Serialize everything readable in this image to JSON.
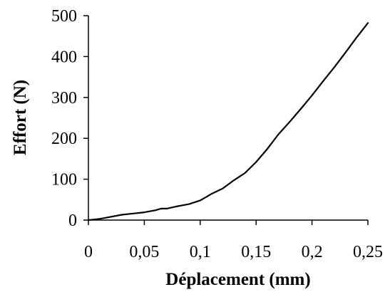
{
  "chart_data": {
    "type": "line",
    "title": "",
    "xlabel": "Déplacement (mm)",
    "ylabel": "Effort (N)",
    "xlim": [
      0,
      0.25
    ],
    "ylim": [
      0,
      500
    ],
    "x_ticks": [
      "0",
      "0,05",
      "0,1",
      "0,15",
      "0,2",
      "0,25"
    ],
    "y_ticks": [
      "0",
      "100",
      "200",
      "300",
      "400",
      "500"
    ],
    "grid": false,
    "legend": "none",
    "line_color": "#000000",
    "series": [
      {
        "x": [
          0,
          0.01,
          0.02,
          0.03,
          0.04,
          0.05,
          0.06,
          0.065,
          0.07,
          0.075,
          0.08,
          0.09,
          0.1,
          0.11,
          0.12,
          0.13,
          0.14,
          0.15,
          0.16,
          0.17,
          0.18,
          0.19,
          0.2,
          0.21,
          0.22,
          0.23,
          0.24,
          0.25
        ],
        "y": [
          0,
          3,
          8,
          13,
          16,
          19,
          24,
          28,
          28,
          31,
          34,
          39,
          48,
          64,
          77,
          97,
          115,
          142,
          174,
          210,
          240,
          272,
          305,
          340,
          374,
          410,
          447,
          482
        ]
      }
    ]
  }
}
